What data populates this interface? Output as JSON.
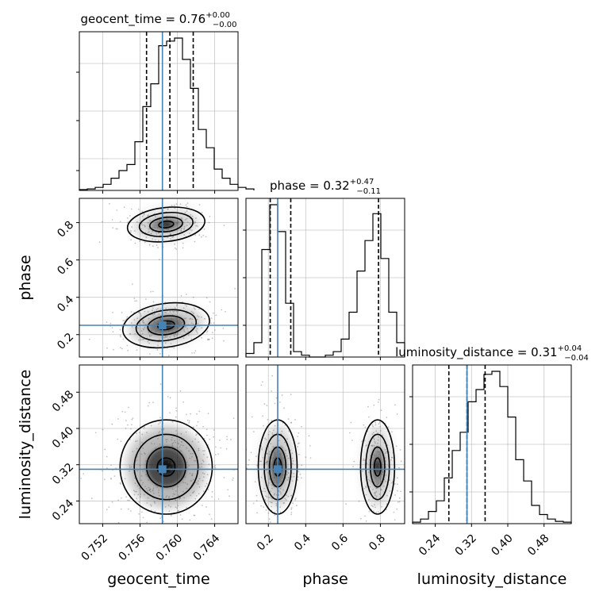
{
  "chart_data": {
    "type": "corner",
    "parameters": [
      "geocent_time",
      "phase",
      "luminosity_distance"
    ],
    "titles": [
      {
        "param": "geocent_time",
        "base": "geocent_time = 0.76",
        "sup": "+0.00",
        "sub": "−0.00"
      },
      {
        "param": "phase",
        "base": "phase = 0.32",
        "sup": "+0.47",
        "sub": "−0.11"
      },
      {
        "param": "luminosity_distance",
        "base": "luminosity_distance = 0.31",
        "sup": "+0.04",
        "sub": "−0.04"
      }
    ],
    "axes": {
      "geocent_time": {
        "range": [
          0.7495,
          0.7665
        ],
        "ticks": [
          0.752,
          0.756,
          0.76,
          0.764
        ],
        "tick_labels": [
          "0.752",
          "0.756",
          "0.760",
          "0.764"
        ]
      },
      "phase": {
        "range": [
          0.08,
          0.93
        ],
        "ticks": [
          0.2,
          0.4,
          0.6,
          0.8
        ],
        "tick_labels": [
          "0.2",
          "0.4",
          "0.6",
          "0.8"
        ]
      },
      "luminosity_distance": {
        "range": [
          0.19,
          0.54
        ],
        "ticks": [
          0.24,
          0.32,
          0.4,
          0.48
        ],
        "tick_labels": [
          "0.24",
          "0.32",
          "0.40",
          "0.48"
        ]
      }
    },
    "truths": {
      "geocent_time": 0.7584,
      "phase": 0.25,
      "luminosity_distance": 0.31
    },
    "quantiles": {
      "geocent_time": [
        0.7567,
        0.7592,
        0.7617
      ],
      "phase": [
        0.21,
        0.32,
        0.79
      ],
      "luminosity_distance": [
        0.27,
        0.31,
        0.35
      ]
    },
    "histograms": {
      "geocent_time": {
        "start": 0.7495,
        "width": 0.00085,
        "heights": [
          0.5,
          1,
          2,
          4,
          8,
          13,
          17,
          32,
          55,
          70,
          95,
          98,
          100,
          86,
          67,
          40,
          28,
          14,
          8,
          4,
          2,
          1
        ]
      },
      "phase": {
        "start": 0.08,
        "width": 0.0425,
        "heights": [
          2,
          8,
          60,
          85,
          70,
          30,
          3,
          1,
          0,
          0,
          1,
          3,
          10,
          25,
          48,
          65,
          80,
          55,
          25,
          8
        ]
      },
      "luminosity_distance": {
        "start": 0.19,
        "width": 0.0175,
        "heights": [
          1,
          3,
          8,
          15,
          30,
          48,
          60,
          80,
          88,
          98,
          100,
          90,
          70,
          42,
          28,
          12,
          6,
          3,
          1.5,
          1
        ]
      }
    },
    "grid": true
  }
}
